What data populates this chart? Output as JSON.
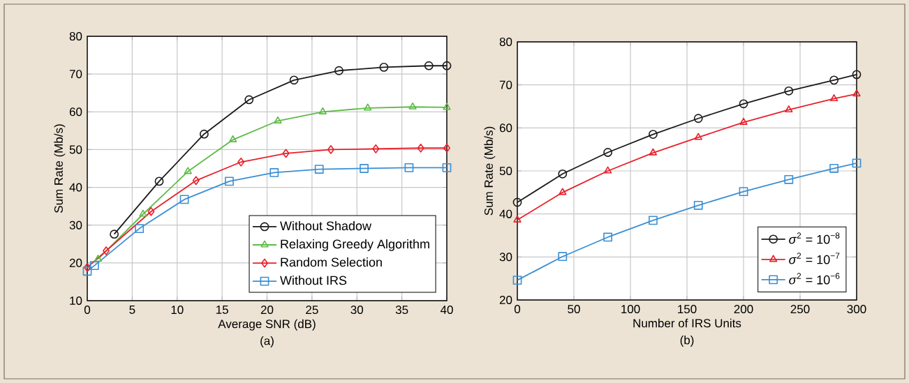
{
  "chart_data": [
    {
      "type": "line",
      "title": "(a)",
      "xlabel": "Average SNR (dB)",
      "ylabel": "Sum Rate (Mb/s)",
      "xlim": [
        0,
        40
      ],
      "ylim": [
        10,
        80
      ],
      "xticks": [
        0,
        5,
        10,
        15,
        20,
        25,
        30,
        35,
        40
      ],
      "yticks": [
        10,
        20,
        30,
        40,
        50,
        60,
        70,
        80
      ],
      "grid": true,
      "legend": "bottom right",
      "line_style": "solid",
      "series": [
        {
          "name": "Without Shadow",
          "color": "#1a1a1a",
          "marker": "circle",
          "x": [
            3,
            8,
            13,
            18,
            23,
            28,
            33,
            38,
            40
          ],
          "values": [
            27.6,
            41.6,
            54.1,
            63.2,
            68.4,
            70.9,
            71.8,
            72.2,
            72.2
          ]
        },
        {
          "name": "Relaxing Greedy Algorithm",
          "color": "#5dbb46",
          "marker": "triangle",
          "x": [
            1.2,
            6.2,
            11.2,
            16.2,
            21.2,
            26.2,
            31.2,
            36.2,
            40
          ],
          "values": [
            21.0,
            32.9,
            44.2,
            52.6,
            57.6,
            60.0,
            61.0,
            61.3,
            61.2
          ]
        },
        {
          "name": "Random Selection",
          "color": "#e8202a",
          "marker": "diamond",
          "x": [
            0,
            2.1,
            7.1,
            12.1,
            17.1,
            22.1,
            27.1,
            32.1,
            37.1,
            40
          ],
          "values": [
            18.8,
            23.2,
            33.6,
            41.8,
            46.7,
            49.0,
            50.0,
            50.2,
            50.4,
            50.4
          ]
        },
        {
          "name": "Without IRS",
          "color": "#3a8fd4",
          "marker": "square",
          "x": [
            0,
            0.8,
            5.8,
            10.8,
            15.8,
            20.8,
            25.8,
            30.8,
            35.8,
            40
          ],
          "values": [
            17.8,
            19.3,
            29.1,
            36.8,
            41.6,
            43.9,
            44.8,
            45.0,
            45.2,
            45.2
          ]
        }
      ]
    },
    {
      "type": "line",
      "title": "(b)",
      "xlabel": "Number of IRS Units",
      "ylabel": "Sum Rate (Mb/s)",
      "xlim": [
        0,
        300
      ],
      "ylim": [
        20,
        80
      ],
      "xticks": [
        0,
        50,
        100,
        150,
        200,
        250,
        300
      ],
      "yticks": [
        20,
        30,
        40,
        50,
        60,
        70,
        80
      ],
      "grid": true,
      "legend": "bottom right",
      "line_style": "solid",
      "series": [
        {
          "name": "*σ*$^{2}$ = 10$^{−8}$",
          "color": "#1a1a1a",
          "marker": "circle",
          "x": [
            0,
            40,
            80,
            120,
            160,
            200,
            240,
            280,
            300
          ],
          "values": [
            42.7,
            49.3,
            54.3,
            58.5,
            62.2,
            65.6,
            68.6,
            71.1,
            72.4
          ]
        },
        {
          "name": "*σ*$^{2}$ = 10$^{−7}$",
          "color": "#e8202a",
          "marker": "triangle",
          "x": [
            0,
            40,
            80,
            120,
            160,
            200,
            240,
            280,
            300
          ],
          "values": [
            38.6,
            45.0,
            50.0,
            54.2,
            57.8,
            61.3,
            64.2,
            66.8,
            67.9
          ]
        },
        {
          "name": "*σ*$^{2}$ = 10$^{−6}$",
          "color": "#3a8fd4",
          "marker": "square",
          "x": [
            0,
            40,
            80,
            120,
            160,
            200,
            240,
            280,
            300
          ],
          "values": [
            24.6,
            30.1,
            34.6,
            38.5,
            42.0,
            45.2,
            48.0,
            50.6,
            51.8
          ]
        }
      ]
    }
  ]
}
